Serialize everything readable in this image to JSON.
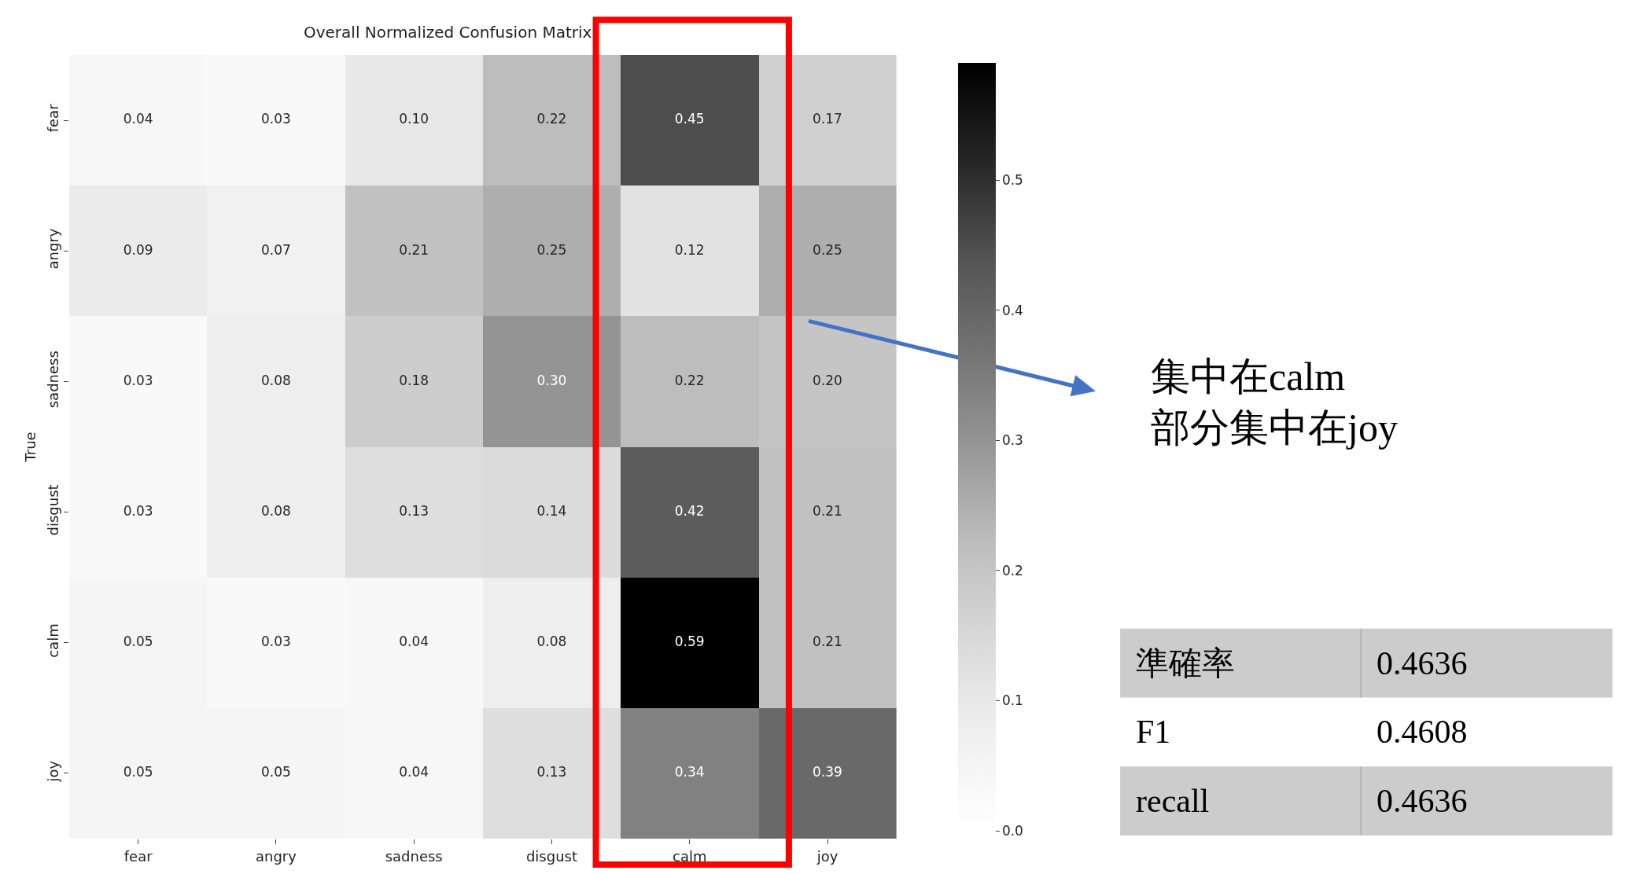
{
  "chart_data": {
    "type": "heatmap",
    "title": "Overall Normalized Confusion Matrix",
    "ylabel": "True",
    "categories": [
      "fear",
      "angry",
      "sadness",
      "disgust",
      "calm",
      "joy"
    ],
    "y_categories": [
      "fear",
      "angry",
      "sadness",
      "disgust",
      "calm",
      "joy"
    ],
    "cells": [
      [
        0.04,
        0.03,
        0.1,
        0.22,
        0.45,
        0.17
      ],
      [
        0.09,
        0.07,
        0.21,
        0.25,
        0.12,
        0.25
      ],
      [
        0.03,
        0.08,
        0.18,
        0.3,
        0.22,
        0.2
      ],
      [
        0.03,
        0.08,
        0.13,
        0.14,
        0.42,
        0.21
      ],
      [
        0.05,
        0.03,
        0.04,
        0.08,
        0.59,
        0.21
      ],
      [
        0.05,
        0.05,
        0.04,
        0.13,
        0.34,
        0.39
      ]
    ],
    "cell_labels": [
      [
        "0.04",
        "0.03",
        "0.10",
        "0.22",
        "0.45",
        "0.17"
      ],
      [
        "0.09",
        "0.07",
        "0.21",
        "0.25",
        "0.12",
        "0.25"
      ],
      [
        "0.03",
        "0.08",
        "0.18",
        "0.30",
        "0.22",
        "0.20"
      ],
      [
        "0.03",
        "0.08",
        "0.13",
        "0.14",
        "0.42",
        "0.21"
      ],
      [
        "0.05",
        "0.03",
        "0.04",
        "0.08",
        "0.59",
        "0.21"
      ],
      [
        "0.05",
        "0.05",
        "0.04",
        "0.13",
        "0.34",
        "0.39"
      ]
    ],
    "clim": [
      0,
      0.59
    ],
    "cticks": [
      {
        "value": 0,
        "label": "0.0"
      },
      0.1,
      0.2,
      0.3,
      0.4,
      0.5
    ],
    "annotations": [
      "集中在calm\n部分集中在joy",
      "準確率",
      "0.4636",
      "F1",
      "0.4608",
      "recall",
      "0.4636"
    ]
  }
}
